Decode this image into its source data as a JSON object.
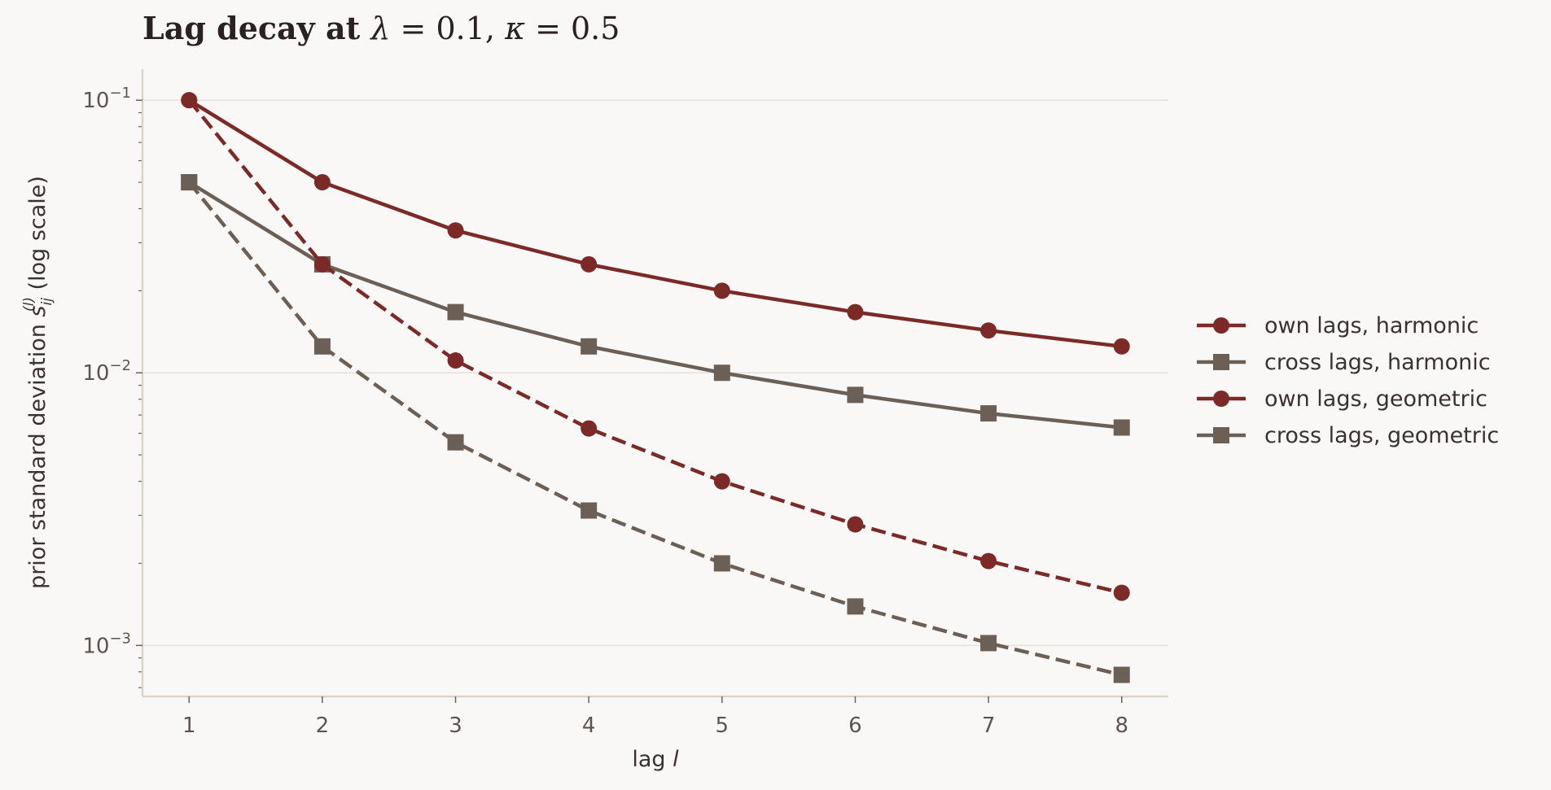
{
  "chart_data": {
    "type": "line",
    "title": "Lag decay at λ = 0.1, κ = 0.5",
    "title_parts": {
      "prefix": "Lag decay at ",
      "lambda_sym": "λ",
      "lambda_val": " = 0.1, ",
      "kappa_sym": "κ",
      "kappa_val": " = 0.5"
    },
    "xlabel": "lag l",
    "xlabel_parts": {
      "text": "lag ",
      "var": "l"
    },
    "ylabel": "prior standard deviation s_ij^(l) (log scale)",
    "ylabel_parts": {
      "prefix": "prior standard deviation ",
      "sym": "s",
      "sub": "ij",
      "sup": "(l)",
      "suffix": " (log scale)"
    },
    "x": [
      1,
      2,
      3,
      4,
      5,
      6,
      7,
      8
    ],
    "xlim": [
      0.65,
      8.35
    ],
    "ylim": [
      0.00065,
      0.13
    ],
    "yscale": "log",
    "grid": "horizontal major",
    "legend_position": "right, outside plot",
    "x_ticks": [
      "1",
      "2",
      "3",
      "4",
      "5",
      "6",
      "7",
      "8"
    ],
    "y_ticks": [
      {
        "value": 0.1,
        "base": "10",
        "exp": "−1"
      },
      {
        "value": 0.01,
        "base": "10",
        "exp": "−2"
      },
      {
        "value": 0.001,
        "base": "10",
        "exp": "−3"
      }
    ],
    "series": [
      {
        "name": "own lags, harmonic",
        "color": "#7b2a28",
        "marker": "circle",
        "linestyle": "solid",
        "values": [
          0.1,
          0.05,
          0.0333,
          0.025,
          0.02,
          0.0167,
          0.0143,
          0.0125
        ]
      },
      {
        "name": "cross lags, harmonic",
        "color": "#6b5f56",
        "marker": "square",
        "linestyle": "solid",
        "values": [
          0.05,
          0.025,
          0.0167,
          0.0125,
          0.01,
          0.0083,
          0.0071,
          0.0063
        ]
      },
      {
        "name": "own lags, geometric",
        "color": "#7b2a28",
        "marker": "circle",
        "linestyle": "dashed",
        "values": [
          0.1,
          0.025,
          0.0111,
          0.00625,
          0.004,
          0.00278,
          0.00204,
          0.00156
        ]
      },
      {
        "name": "cross lags, geometric",
        "color": "#6b5f56",
        "marker": "square",
        "linestyle": "dashed",
        "values": [
          0.05,
          0.0125,
          0.00556,
          0.003125,
          0.002,
          0.00139,
          0.00102,
          0.00078
        ]
      }
    ]
  },
  "colors": {
    "background": "#faf8f6",
    "grid": "#e4e0da",
    "spine": "#d8d3cc",
    "own": "#7b2a28",
    "cross": "#6b5f56"
  }
}
